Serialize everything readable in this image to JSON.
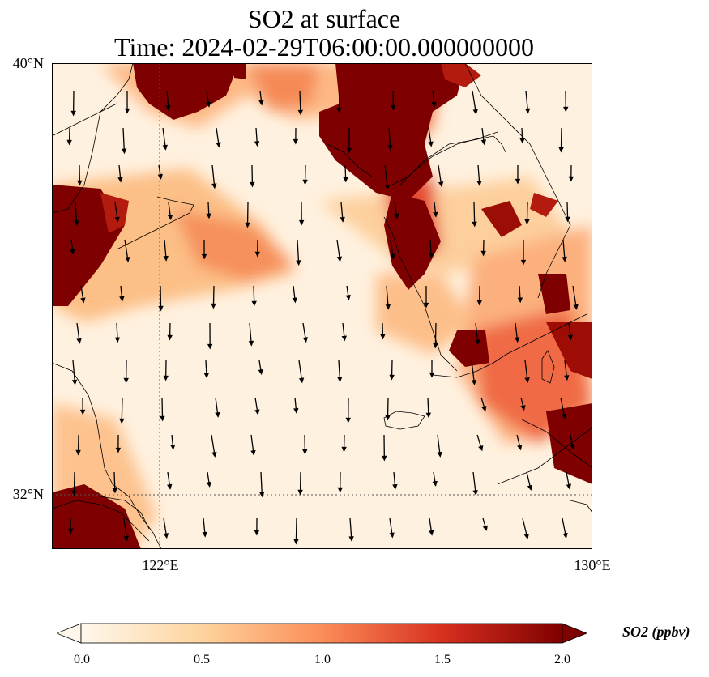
{
  "figure": {
    "title_line1": "SO2 at surface",
    "title_line2": "Time: 2024-02-29T06:00:00.000000000"
  },
  "map": {
    "lat_labels": [
      "40°N",
      "32°N"
    ],
    "lon_labels": [
      "122°E",
      "130°E"
    ],
    "lat_range": [
      31,
      40
    ],
    "lon_range": [
      120,
      130
    ],
    "gridlines": {
      "lat": 32,
      "lon": 122,
      "style": "dotted"
    },
    "colormap": "OrRd",
    "features": [
      "coastlines",
      "wind-vectors",
      "so2-field"
    ]
  },
  "colorbar": {
    "label": "SO2 (ppbv)",
    "ticks": [
      "0.0",
      "0.5",
      "1.0",
      "1.5",
      "2.0"
    ],
    "range": [
      0,
      2
    ],
    "extend": "both",
    "colors": [
      "#fff7ec",
      "#fdd49e",
      "#fc8d59",
      "#d7301f",
      "#7f0000"
    ]
  }
}
